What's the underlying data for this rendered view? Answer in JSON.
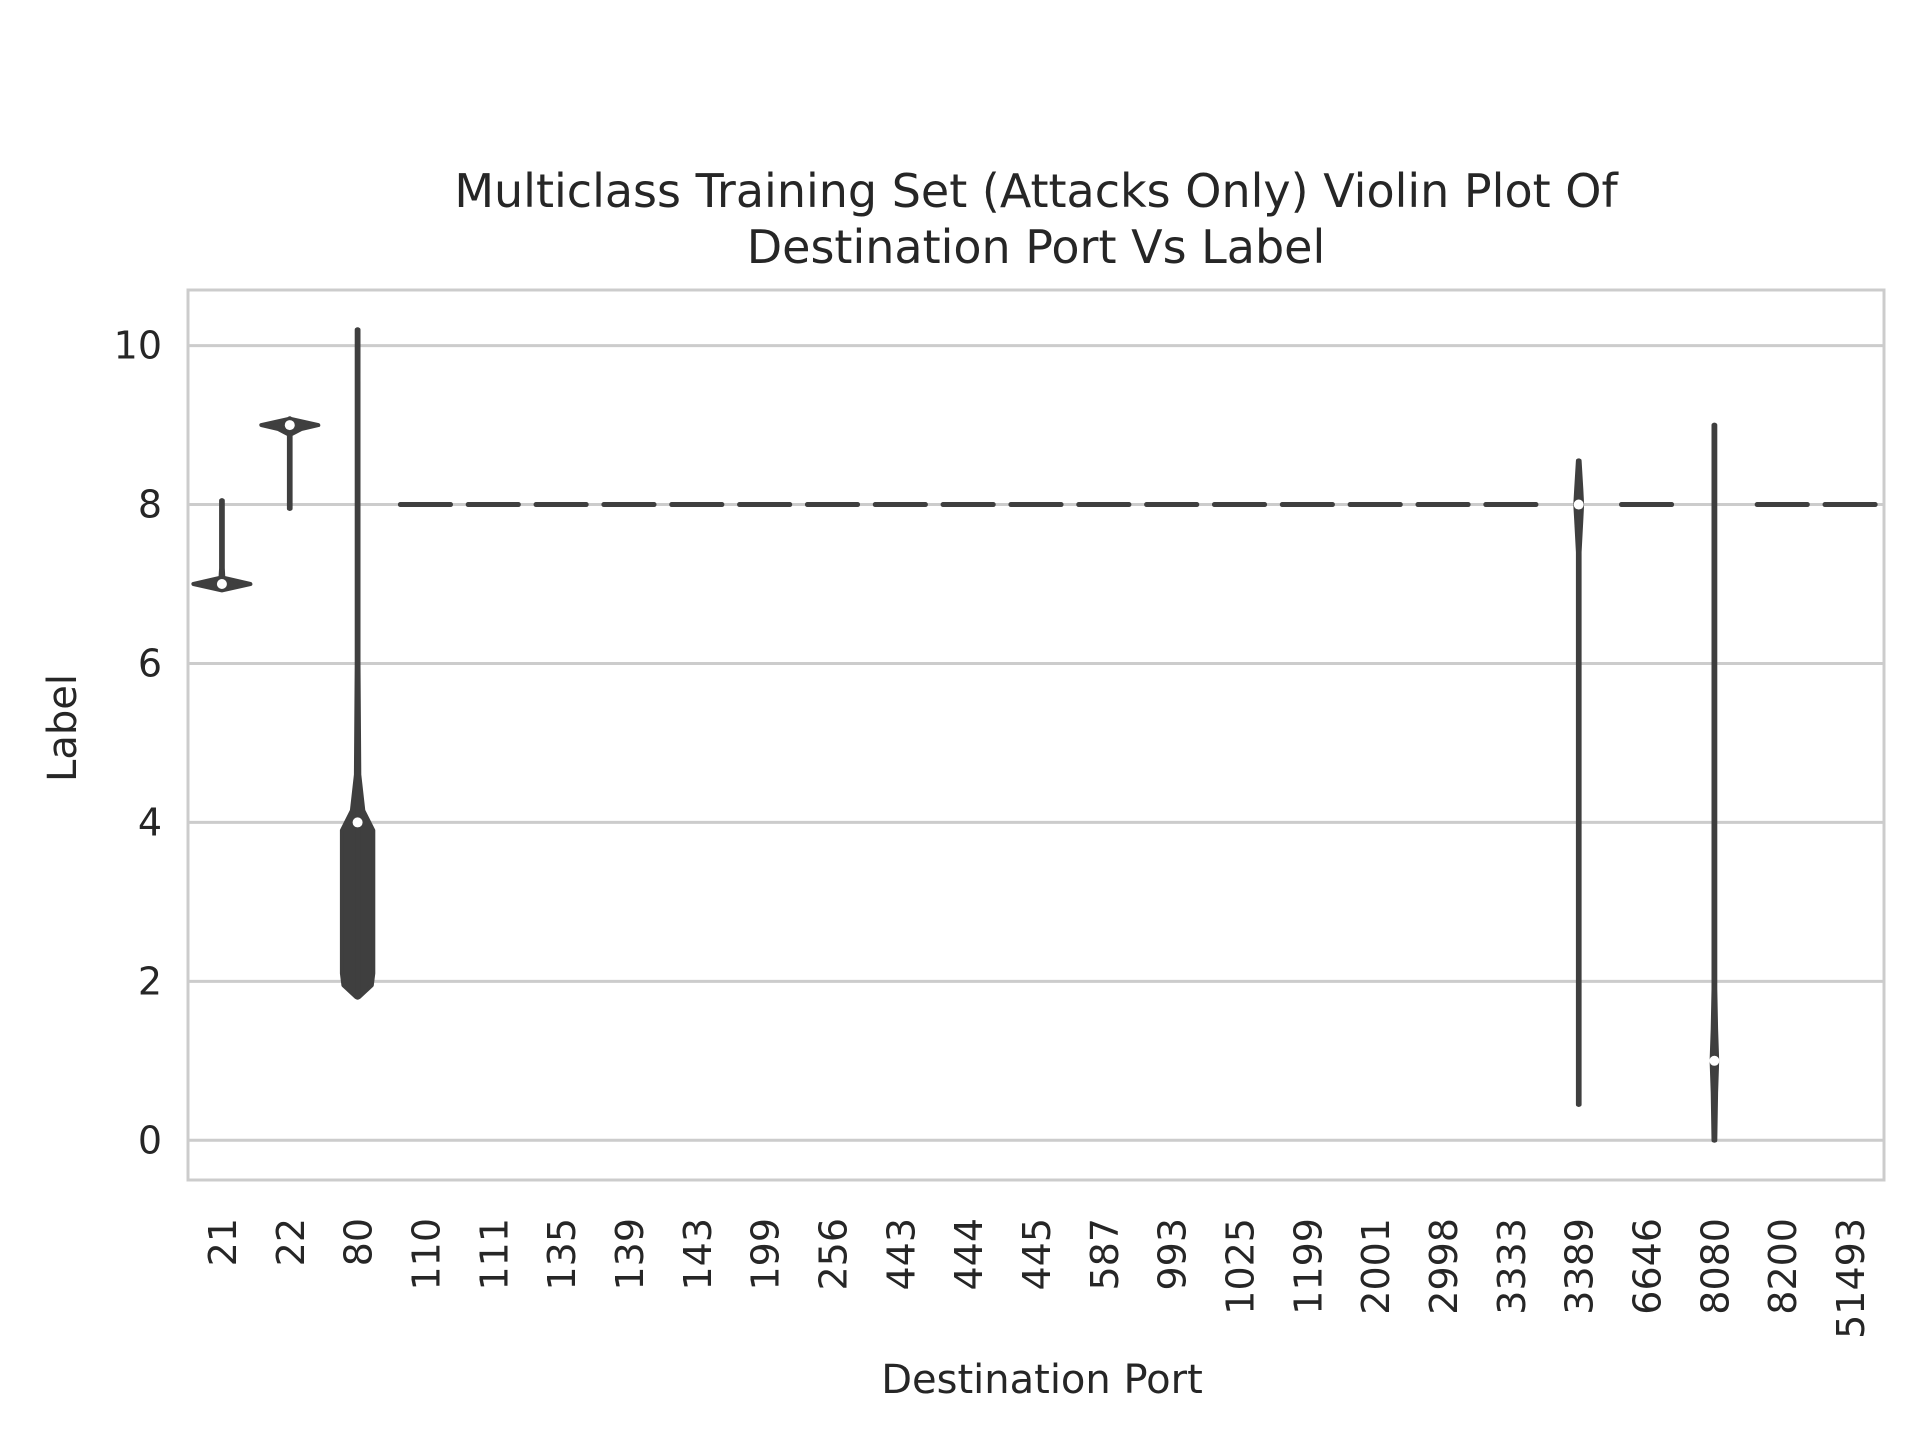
{
  "chart_data": {
    "type": "violin",
    "title_lines": [
      "Multiclass Training Set  (Attacks Only) Violin Plot Of",
      "Destination Port Vs  Label"
    ],
    "xlabel": "Destination Port",
    "ylabel": "Label",
    "categories": [
      "21",
      "22",
      "80",
      "110",
      "111",
      "135",
      "139",
      "143",
      "199",
      "256",
      "443",
      "444",
      "445",
      "587",
      "993",
      "1025",
      "1199",
      "2001",
      "2998",
      "3333",
      "3389",
      "6646",
      "8080",
      "8200",
      "51493"
    ],
    "ylim": [
      -0.5,
      10.7
    ],
    "yticks": [
      0,
      2,
      4,
      6,
      8,
      10
    ],
    "grid": "horizontal",
    "colors": {
      "violin": "#3f3f3f",
      "grid": "#cccccc",
      "median_point": "#ffffff",
      "frame": "#cccccc"
    },
    "violins": [
      {
        "category": "21",
        "min": 7.0,
        "max": 8.05,
        "median": 7.0,
        "profile": [
          [
            6.92,
            0
          ],
          [
            7.0,
            1.0
          ],
          [
            7.08,
            0.05
          ],
          [
            7.2,
            0.03
          ],
          [
            8.05,
            0.03
          ]
        ]
      },
      {
        "category": "22",
        "min": 7.95,
        "max": 9.08,
        "median": 9.0,
        "profile": [
          [
            7.95,
            0.03
          ],
          [
            8.88,
            0.03
          ],
          [
            8.95,
            0.4
          ],
          [
            9.0,
            1.0
          ],
          [
            9.08,
            0
          ]
        ]
      },
      {
        "category": "80",
        "min": 1.8,
        "max": 10.2,
        "median": 4.0,
        "profile": [
          [
            1.8,
            0.05
          ],
          [
            1.95,
            0.5
          ],
          [
            2.1,
            0.55
          ],
          [
            3.9,
            0.55
          ],
          [
            4.15,
            0.2
          ],
          [
            4.6,
            0.06
          ],
          [
            6.0,
            0.03
          ],
          [
            10.2,
            0.03
          ]
        ]
      },
      {
        "category": "110",
        "min": 8.0,
        "max": 8.0,
        "median": 8.0,
        "profile": []
      },
      {
        "category": "111",
        "min": 8.0,
        "max": 8.0,
        "median": 8.0,
        "profile": []
      },
      {
        "category": "135",
        "min": 8.0,
        "max": 8.0,
        "median": 8.0,
        "profile": []
      },
      {
        "category": "139",
        "min": 8.0,
        "max": 8.0,
        "median": 8.0,
        "profile": []
      },
      {
        "category": "143",
        "min": 8.0,
        "max": 8.0,
        "median": 8.0,
        "profile": []
      },
      {
        "category": "199",
        "min": 8.0,
        "max": 8.0,
        "median": 8.0,
        "profile": []
      },
      {
        "category": "256",
        "min": 8.0,
        "max": 8.0,
        "median": 8.0,
        "profile": []
      },
      {
        "category": "443",
        "min": 8.0,
        "max": 8.0,
        "median": 8.0,
        "profile": []
      },
      {
        "category": "444",
        "min": 8.0,
        "max": 8.0,
        "median": 8.0,
        "profile": []
      },
      {
        "category": "445",
        "min": 8.0,
        "max": 8.0,
        "median": 8.0,
        "profile": []
      },
      {
        "category": "587",
        "min": 8.0,
        "max": 8.0,
        "median": 8.0,
        "profile": []
      },
      {
        "category": "993",
        "min": 8.0,
        "max": 8.0,
        "median": 8.0,
        "profile": []
      },
      {
        "category": "1025",
        "min": 8.0,
        "max": 8.0,
        "median": 8.0,
        "profile": []
      },
      {
        "category": "1199",
        "min": 8.0,
        "max": 8.0,
        "median": 8.0,
        "profile": []
      },
      {
        "category": "2001",
        "min": 8.0,
        "max": 8.0,
        "median": 8.0,
        "profile": []
      },
      {
        "category": "2998",
        "min": 8.0,
        "max": 8.0,
        "median": 8.0,
        "profile": []
      },
      {
        "category": "3333",
        "min": 8.0,
        "max": 8.0,
        "median": 8.0,
        "profile": []
      },
      {
        "category": "3389",
        "min": 0.45,
        "max": 8.55,
        "median": 8.0,
        "profile": [
          [
            0.45,
            0.03
          ],
          [
            7.4,
            0.03
          ],
          [
            7.8,
            0.09
          ],
          [
            8.0,
            0.12
          ],
          [
            8.2,
            0.09
          ],
          [
            8.55,
            0.03
          ]
        ]
      },
      {
        "category": "6646",
        "min": 8.0,
        "max": 8.0,
        "median": 8.0,
        "profile": []
      },
      {
        "category": "8080",
        "min": 0.0,
        "max": 9.0,
        "median": 1.0,
        "profile": [
          [
            0.0,
            0.03
          ],
          [
            0.6,
            0.06
          ],
          [
            1.0,
            0.1
          ],
          [
            1.4,
            0.06
          ],
          [
            1.9,
            0.03
          ],
          [
            9.0,
            0.03
          ]
        ]
      },
      {
        "category": "8200",
        "min": 8.0,
        "max": 8.0,
        "median": 8.0,
        "profile": []
      },
      {
        "category": "51493",
        "min": 8.0,
        "max": 8.0,
        "median": 8.0,
        "profile": []
      }
    ]
  }
}
